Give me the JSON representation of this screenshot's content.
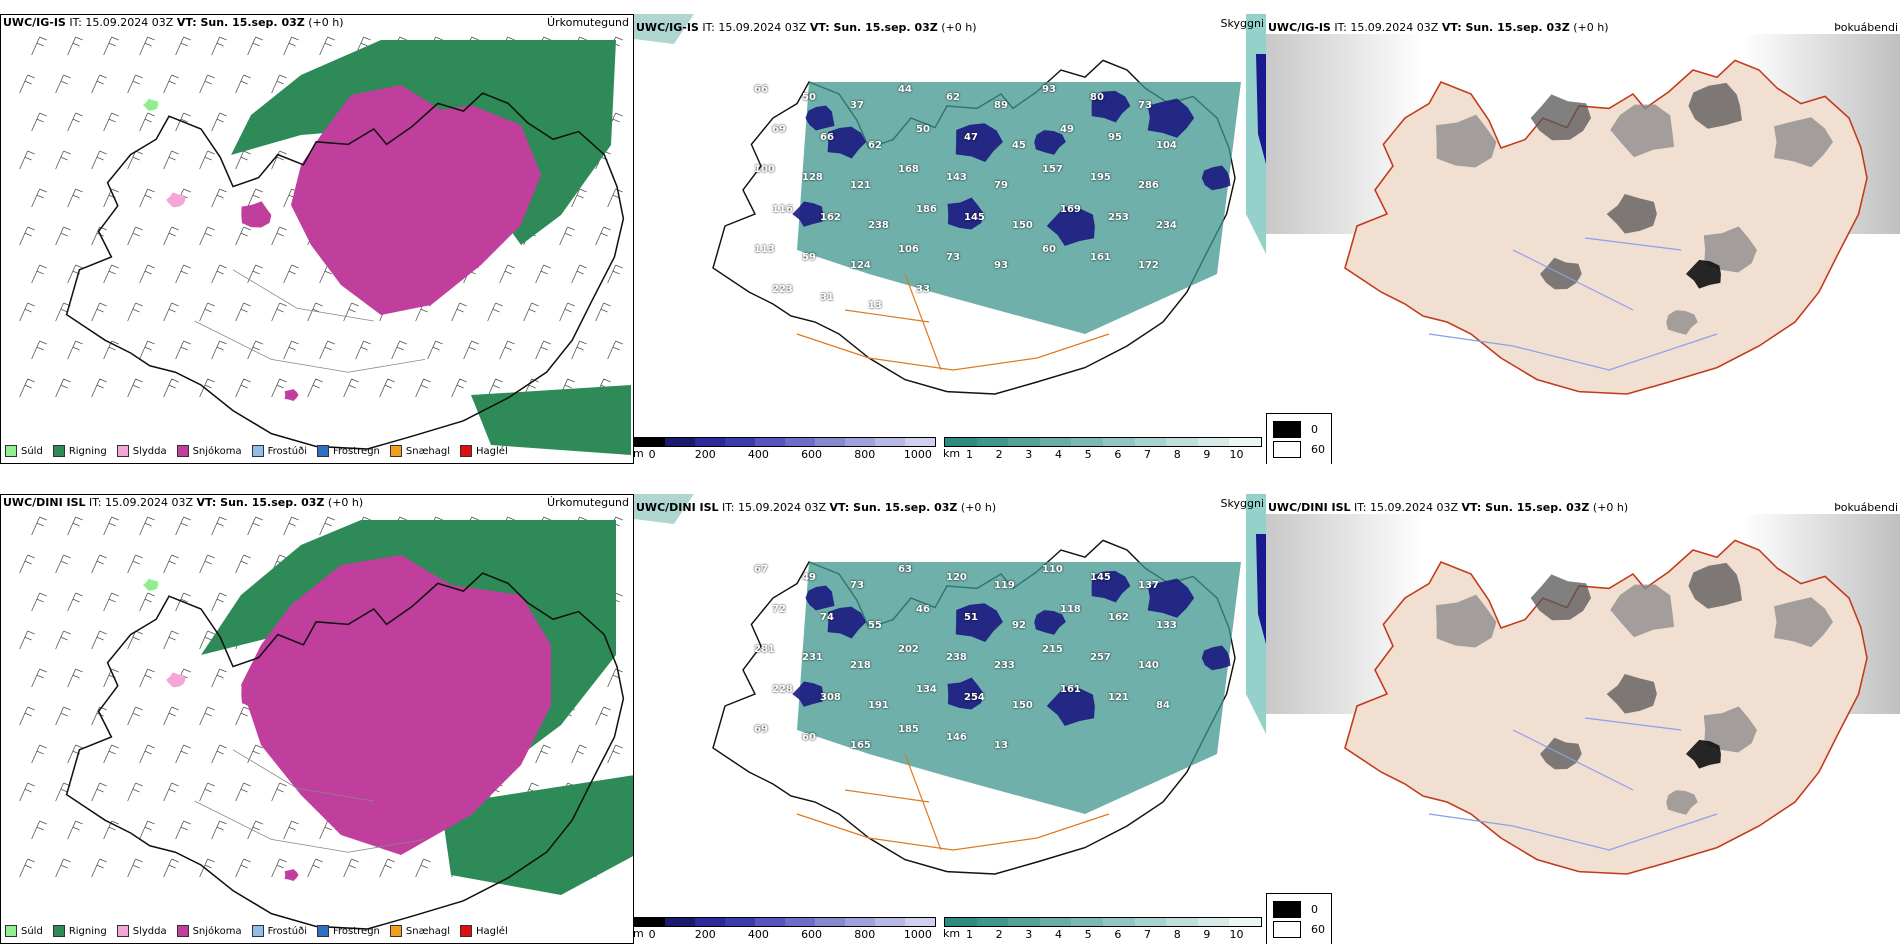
{
  "rows": [
    {
      "id": "ig",
      "precip": {
        "header_model": "UWC/IG-IS",
        "header_it": "IT: 15.09.2024 03Z",
        "header_vt": "VT: Sun. 15.sep. 03Z",
        "header_lead": "(+0 h)",
        "title": "Úrkomutegund"
      },
      "vis": {
        "header_model": "UWC/IG-IS",
        "header_it": "IT: 15.09.2024 03Z",
        "header_vt": "VT: Sun. 15.sep. 03Z",
        "header_lead": "(+0 h)",
        "title": "Skyggni",
        "labels": [
          "66",
          "50",
          "37",
          "44",
          "62",
          "89",
          "93",
          "80",
          "73",
          "69",
          "66",
          "62",
          "50",
          "47",
          "45",
          "49",
          "95",
          "104",
          "100",
          "128",
          "121",
          "168",
          "143",
          "79",
          "157",
          "195",
          "286",
          "116",
          "162",
          "238",
          "186",
          "145",
          "150",
          "169",
          "253",
          "234",
          "113",
          "59",
          "124",
          "106",
          "73",
          "93",
          "60",
          "161",
          "172",
          "223",
          "31",
          "13",
          "33"
        ]
      },
      "fog": {
        "header_model": "UWC/IG-IS",
        "header_it": "IT: 15.09.2024 03Z",
        "header_vt": "VT: Sun. 15.sep. 03Z",
        "header_lead": "(+0 h)",
        "title": "Þokuábendi"
      }
    },
    {
      "id": "dini",
      "precip": {
        "header_model": "UWC/DINI ISL",
        "header_it": "IT: 15.09.2024 03Z",
        "header_vt": "VT: Sun. 15.sep. 03Z",
        "header_lead": "(+0 h)",
        "title": "Úrkomutegund"
      },
      "vis": {
        "header_model": "UWC/DINI ISL",
        "header_it": "IT: 15.09.2024 03Z",
        "header_vt": "VT: Sun. 15.sep. 03Z",
        "header_lead": "(+0 h)",
        "title": "Skyggni",
        "labels": [
          "67",
          "49",
          "73",
          "63",
          "120",
          "119",
          "110",
          "145",
          "137",
          "72",
          "74",
          "55",
          "46",
          "51",
          "92",
          "118",
          "162",
          "133",
          "281",
          "231",
          "218",
          "202",
          "238",
          "233",
          "215",
          "257",
          "140",
          "228",
          "308",
          "191",
          "134",
          "254",
          "150",
          "161",
          "121",
          "84",
          "69",
          "60",
          "165",
          "185",
          "146",
          "13"
        ]
      },
      "fog": {
        "header_model": "UWC/DINI ISL",
        "header_it": "IT: 15.09.2024 03Z",
        "header_vt": "VT: Sun. 15.sep. 03Z",
        "header_lead": "(+0 h)",
        "title": "Þokuábendi"
      }
    }
  ],
  "precip_legend": [
    {
      "label": "Súld",
      "color": "#90ee90"
    },
    {
      "label": "Rigning",
      "color": "#2e8b57"
    },
    {
      "label": "Slydda",
      "color": "#f4a6d7"
    },
    {
      "label": "Snjókoma",
      "color": "#c03e9c"
    },
    {
      "label": "Frostúði",
      "color": "#8fbce8"
    },
    {
      "label": "Frostregn",
      "color": "#2e6fc0"
    },
    {
      "label": "Snæhagl",
      "color": "#f0a020"
    },
    {
      "label": "Haglél",
      "color": "#e01010"
    }
  ],
  "vis_legend": {
    "m": {
      "unit": "m",
      "ticks": [
        "0",
        "200",
        "400",
        "600",
        "800",
        "1000"
      ],
      "colors": [
        "#000000",
        "#1a1a6e",
        "#2a2a9a",
        "#3b3bb0",
        "#5555bb",
        "#6e6ec6",
        "#8888d0",
        "#a0a0da",
        "#b8b8e4",
        "#d0d0ee"
      ]
    },
    "km": {
      "unit": "km",
      "ticks": [
        "1",
        "2",
        "3",
        "4",
        "5",
        "6",
        "7",
        "8",
        "9",
        "10"
      ],
      "colors": [
        "#2e8b82",
        "#3f968e",
        "#52a29a",
        "#66aea6",
        "#7bbab3",
        "#91c6c0",
        "#a8d2cd",
        "#bfdeda",
        "#d6ebe8",
        "#ecf6f4"
      ]
    }
  },
  "fog_legend": [
    {
      "label": "0",
      "color": "#000000"
    },
    {
      "label": "60",
      "color": "#ffffff"
    }
  ]
}
